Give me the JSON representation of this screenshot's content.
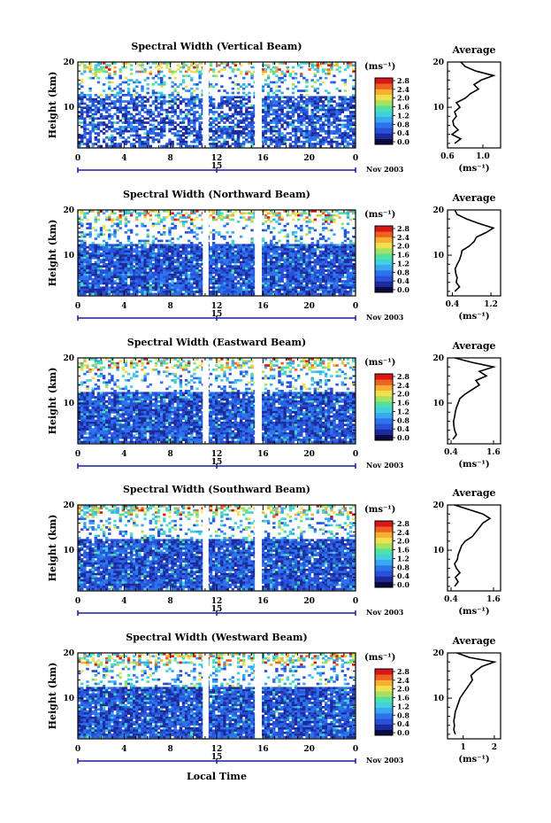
{
  "figure": {
    "bottom_axis_label": "Local Time",
    "date_label": "Nov 2003",
    "colorbar_unit": "(ms⁻¹)",
    "colorbar_ticks": [
      "0.0",
      "0.4",
      "0.8",
      "1.2",
      "1.6",
      "2.0",
      "2.4",
      "2.8"
    ],
    "colorbar_colors": [
      "#0a0a40",
      "#1c2a9c",
      "#2850d8",
      "#2c74ec",
      "#3aa8f0",
      "#40d0e0",
      "#50e2a0",
      "#a8e060",
      "#f0e050",
      "#f8b030",
      "#f06020",
      "#d81818"
    ],
    "day_label": "15",
    "time_ticks": [
      "0",
      "4",
      "8",
      "12",
      "16",
      "20",
      "0"
    ],
    "height_ticks": [
      "10",
      "20"
    ],
    "ylabel": "Height (km)",
    "avg_title": "Average",
    "avg_unit": "(ms⁻¹)"
  },
  "chart_data": [
    {
      "type": "heatmap",
      "title": "Spectral Width (Vertical Beam)",
      "xlabel": "Local Time",
      "ylabel": "Height (km)",
      "x_range_hours": [
        0,
        24
      ],
      "y_range_km": [
        1,
        20
      ],
      "color_range": [
        0,
        2.8
      ],
      "data_gaps_hours": [
        [
          10.8,
          11.3
        ],
        [
          15.3,
          15.9
        ]
      ],
      "profile": {
        "title": "Average",
        "xlabel": "(ms⁻¹)",
        "xticks": [
          "0.6",
          "1.0"
        ],
        "xlim": [
          0.6,
          1.2
        ],
        "heights": [
          2,
          3,
          4,
          5,
          6,
          7,
          8,
          9,
          10,
          11,
          12,
          13,
          14,
          15,
          16,
          17,
          18,
          19,
          20
        ],
        "values": [
          0.68,
          0.75,
          0.65,
          0.72,
          0.67,
          0.66,
          0.7,
          0.68,
          0.74,
          0.7,
          0.8,
          0.86,
          0.95,
          0.9,
          0.98,
          1.12,
          0.92,
          0.8,
          0.75
        ]
      }
    },
    {
      "type": "heatmap",
      "title": "Spectral Width (Northward Beam)",
      "xlabel": "Local Time",
      "ylabel": "Height (km)",
      "x_range_hours": [
        0,
        24
      ],
      "y_range_km": [
        1,
        20
      ],
      "color_range": [
        0,
        2.8
      ],
      "data_gaps_hours": [
        [
          10.8,
          11.3
        ],
        [
          15.3,
          15.9
        ]
      ],
      "profile": {
        "title": "Average",
        "xlabel": "(ms⁻¹)",
        "xticks": [
          "0.4",
          "1.2"
        ],
        "xlim": [
          0.3,
          1.4
        ],
        "heights": [
          2,
          3,
          4,
          5,
          6,
          7,
          8,
          9,
          10,
          11,
          12,
          13,
          14,
          15,
          16,
          17,
          18,
          19,
          20
        ],
        "values": [
          0.45,
          0.55,
          0.48,
          0.5,
          0.47,
          0.46,
          0.5,
          0.55,
          0.58,
          0.6,
          0.75,
          0.85,
          0.9,
          1.1,
          1.25,
          0.95,
          0.7,
          0.5,
          0.45
        ]
      }
    },
    {
      "type": "heatmap",
      "title": "Spectral Width (Eastward Beam)",
      "xlabel": "Local Time",
      "ylabel": "Height (km)",
      "x_range_hours": [
        0,
        24
      ],
      "y_range_km": [
        1,
        20
      ],
      "color_range": [
        0,
        2.8
      ],
      "data_gaps_hours": [
        [
          10.8,
          11.3
        ],
        [
          15.3,
          15.9
        ]
      ],
      "profile": {
        "title": "Average",
        "xlabel": "(ms⁻¹)",
        "xticks": [
          "0.4",
          "1.6"
        ],
        "xlim": [
          0.3,
          1.8
        ],
        "heights": [
          2,
          3,
          4,
          5,
          6,
          7,
          8,
          9,
          10,
          11,
          12,
          13,
          14,
          15,
          16,
          17,
          18,
          19,
          20
        ],
        "values": [
          0.45,
          0.55,
          0.5,
          0.48,
          0.47,
          0.5,
          0.52,
          0.55,
          0.6,
          0.65,
          0.8,
          1.0,
          1.2,
          1.1,
          1.4,
          1.2,
          1.6,
          1.0,
          0.5
        ]
      }
    },
    {
      "type": "heatmap",
      "title": "Spectral Width (Southward Beam)",
      "xlabel": "Local Time",
      "ylabel": "Height (km)",
      "x_range_hours": [
        0,
        24
      ],
      "y_range_km": [
        1,
        20
      ],
      "color_range": [
        0,
        2.8
      ],
      "data_gaps_hours": [
        [
          10.8,
          11.3
        ],
        [
          15.3,
          15.9
        ]
      ],
      "profile": {
        "title": "Average",
        "xlabel": "(ms⁻¹)",
        "xticks": [
          "0.4",
          "1.6"
        ],
        "xlim": [
          0.3,
          1.8
        ],
        "heights": [
          2,
          3,
          4,
          5,
          6,
          7,
          8,
          9,
          10,
          11,
          12,
          13,
          14,
          15,
          16,
          17,
          18,
          19,
          20
        ],
        "values": [
          0.5,
          0.6,
          0.52,
          0.65,
          0.55,
          0.5,
          0.58,
          0.6,
          0.65,
          0.7,
          0.8,
          1.0,
          1.1,
          1.2,
          1.3,
          1.5,
          1.3,
          0.9,
          0.5
        ]
      }
    },
    {
      "type": "heatmap",
      "title": "Spectral Width (Westward Beam)",
      "xlabel": "Local Time",
      "ylabel": "Height (km)",
      "x_range_hours": [
        0,
        24
      ],
      "y_range_km": [
        1,
        20
      ],
      "color_range": [
        0,
        2.8
      ],
      "data_gaps_hours": [
        [
          10.8,
          11.3
        ],
        [
          15.3,
          15.9
        ]
      ],
      "profile": {
        "title": "Average",
        "xlabel": "(ms⁻¹)",
        "xticks": [
          "1",
          "2"
        ],
        "xlim": [
          0.5,
          2.2
        ],
        "heights": [
          2,
          3,
          4,
          5,
          6,
          7,
          8,
          9,
          10,
          11,
          12,
          13,
          14,
          15,
          16,
          17,
          18,
          19,
          20
        ],
        "values": [
          0.75,
          0.7,
          0.72,
          0.7,
          0.73,
          0.75,
          0.8,
          0.85,
          0.9,
          1.0,
          1.1,
          1.2,
          1.3,
          1.25,
          1.4,
          1.6,
          2.0,
          1.2,
          0.8
        ]
      }
    }
  ]
}
